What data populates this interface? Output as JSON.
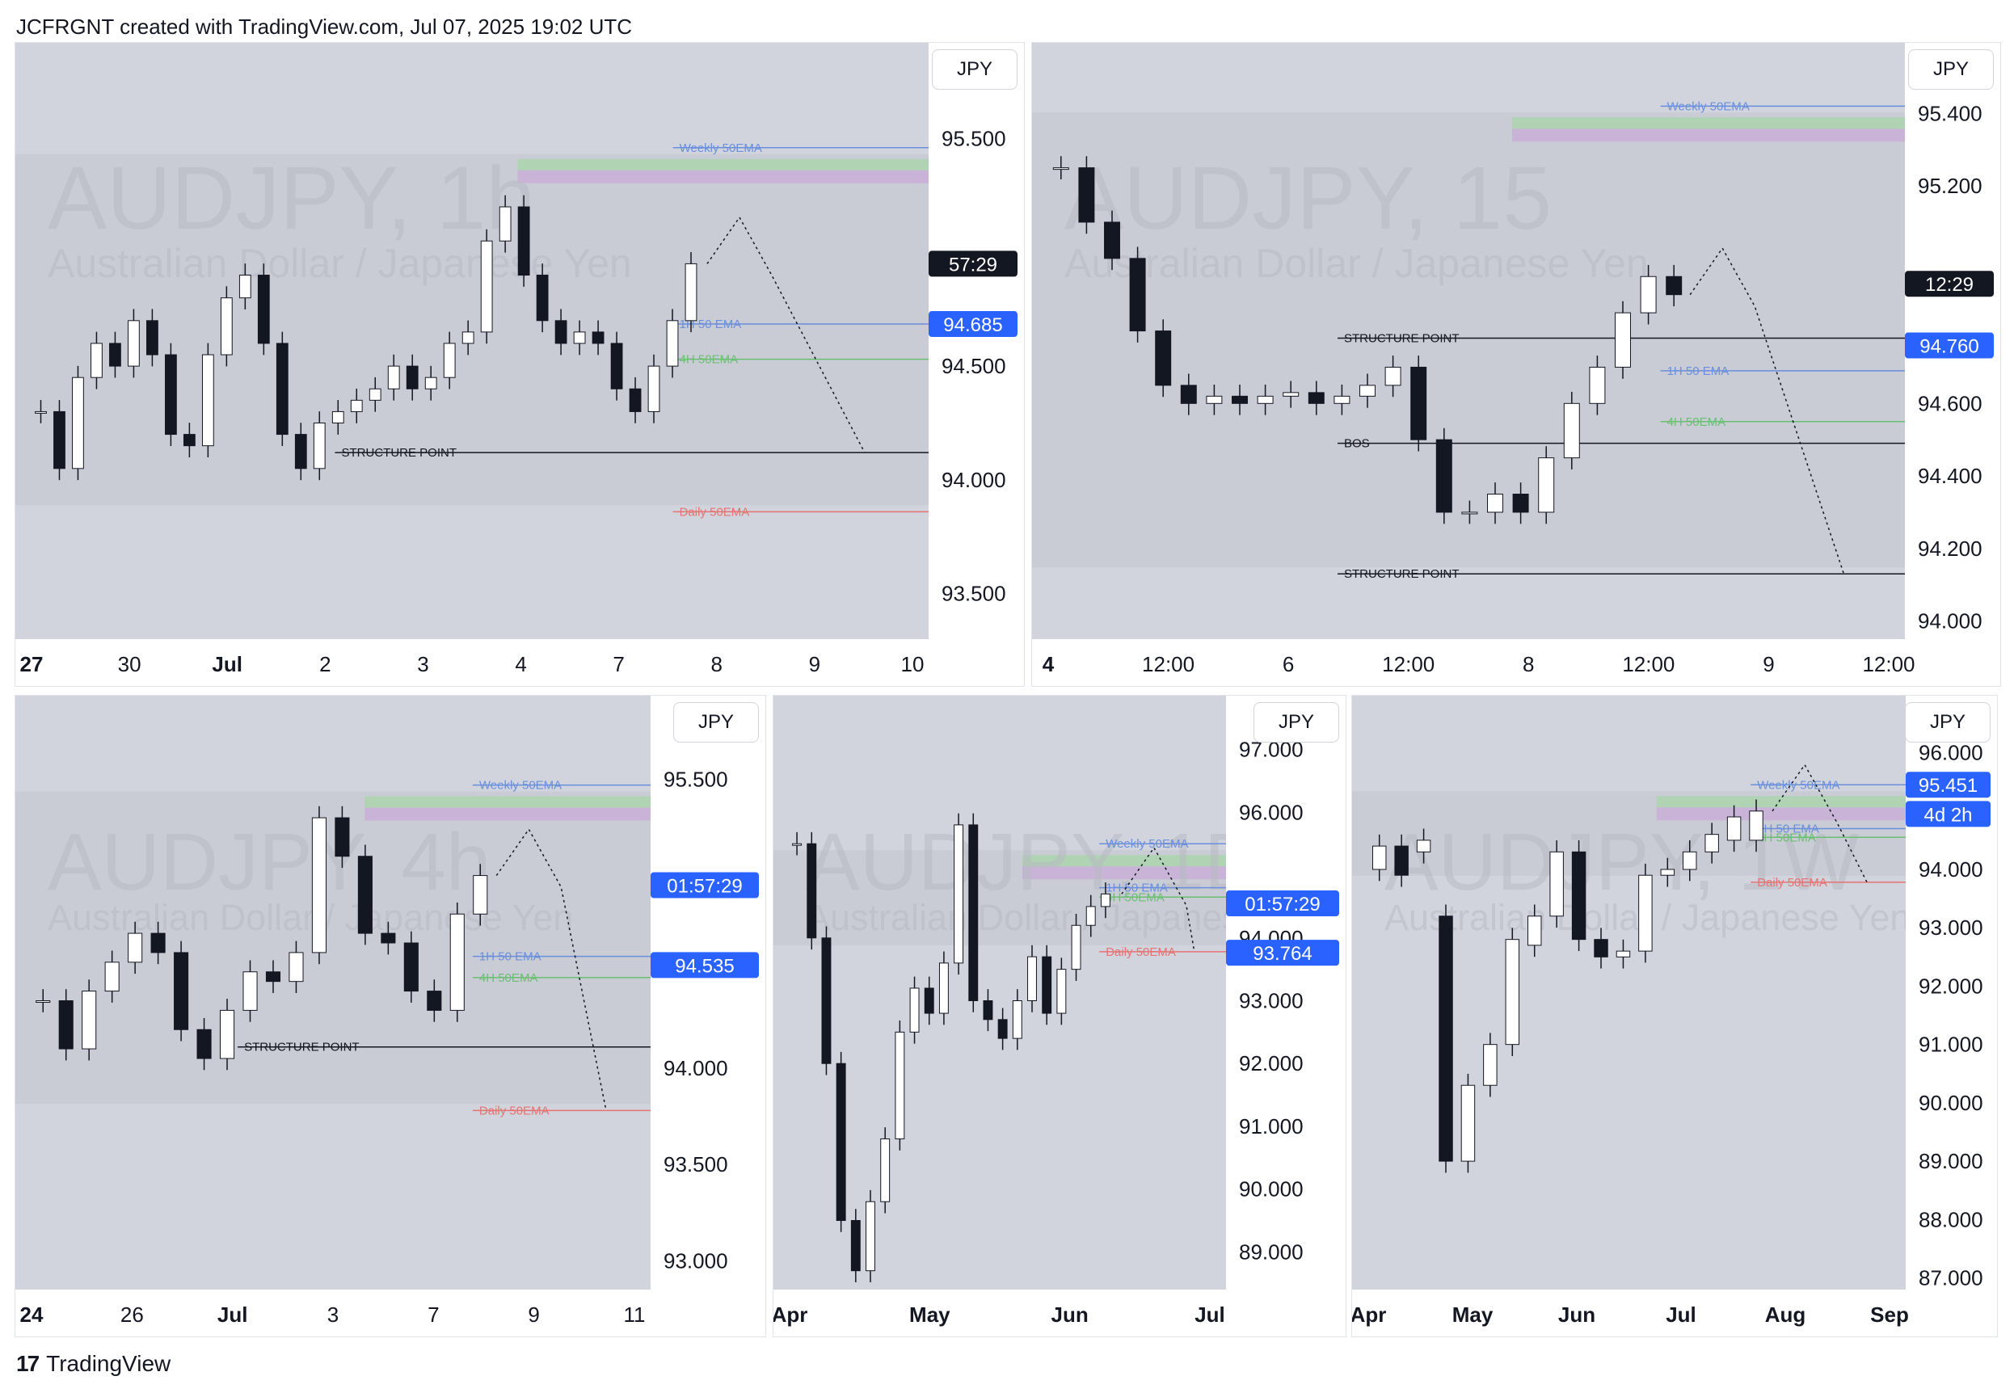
{
  "header": {
    "text": "JCFRGNT created with TradingView.com, Jul 07, 2025 19:02 UTC"
  },
  "footer": {
    "brand": "TradingView",
    "logo_glyph": "17"
  },
  "colors": {
    "panel_bg": "#d1d4dc",
    "zone_bg": "#c3c6ce",
    "weekly_ema": "#6a8fdc",
    "h1_ema": "#6a8fdc",
    "h4_ema": "#6abf73",
    "daily_ema": "#e57373",
    "supply_green": "#a5d6a7",
    "supply_purple": "#c9a4d8",
    "blue_tag": "#2962ff",
    "black_tag": "#131722"
  },
  "chart_data": [
    {
      "type": "candlestick",
      "symbol_watermark": "AUDJPY, 1h",
      "watermark_sub": "Australian Dollar / Japanese Yen",
      "currency": "JPY",
      "ylim": [
        93.3,
        95.85
      ],
      "y_ticks": [
        "95.500",
        "94.500",
        "94.000",
        "93.500"
      ],
      "x_ticks": [
        "27",
        "30",
        "Jul",
        "2",
        "3",
        "4",
        "7",
        "8",
        "9",
        "10"
      ],
      "tags": [
        {
          "text": "57:29",
          "value": 94.95,
          "color": "black"
        },
        {
          "text": "94.685",
          "value": 94.685,
          "color": "blue"
        }
      ],
      "levels": [
        {
          "name": "Weekly 50EMA",
          "value": 95.46,
          "color": "#6a8fdc"
        },
        {
          "name": "1H 50 EMA",
          "value": 94.685,
          "color": "#6a8fdc"
        },
        {
          "name": "4H 50EMA",
          "value": 94.53,
          "color": "#6abf73"
        },
        {
          "name": "Daily 50EMA",
          "value": 93.86,
          "color": "#e57373"
        },
        {
          "name": "STRUCTURE POINT",
          "value": 94.12,
          "color": "#131722"
        }
      ],
      "series": [
        {
          "name": "close",
          "values": [
            94.3,
            94.05,
            94.45,
            94.6,
            94.5,
            94.7,
            94.55,
            94.2,
            94.15,
            94.55,
            94.8,
            94.9,
            94.6,
            94.2,
            94.05,
            94.25,
            94.3,
            94.35,
            94.4,
            94.5,
            94.4,
            94.45,
            94.6,
            94.65,
            95.05,
            95.2,
            94.9,
            94.7,
            94.6,
            94.65,
            94.6,
            94.4,
            94.3,
            94.5,
            94.7,
            94.95
          ]
        }
      ]
    },
    {
      "type": "candlestick",
      "symbol_watermark": "AUDJPY, 15",
      "watermark_sub": "Australian Dollar / Japanese Yen",
      "currency": "JPY",
      "ylim": [
        93.95,
        95.55
      ],
      "y_ticks": [
        "95.400",
        "95.200",
        "94.600",
        "94.400",
        "94.200",
        "94.000"
      ],
      "x_ticks": [
        "4",
        "12:00",
        "6",
        "12:00",
        "8",
        "12:00",
        "9",
        "12:00"
      ],
      "tags": [
        {
          "text": "12:29",
          "value": 94.93,
          "color": "black"
        },
        {
          "text": "94.760",
          "value": 94.76,
          "color": "blue"
        }
      ],
      "levels": [
        {
          "name": "Weekly 50EMA",
          "value": 95.42,
          "color": "#6a8fdc"
        },
        {
          "name": "STRUCTURE POINT",
          "value": 94.78,
          "color": "#131722"
        },
        {
          "name": "1H 50 EMA",
          "value": 94.69,
          "color": "#6a8fdc"
        },
        {
          "name": "4H 50EMA",
          "value": 94.55,
          "color": "#6abf73"
        },
        {
          "name": "BOS",
          "value": 94.49,
          "color": "#131722"
        },
        {
          "name": "STRUCTURE POINT",
          "value": 94.13,
          "color": "#131722"
        }
      ],
      "series": [
        {
          "name": "close",
          "values": [
            95.25,
            95.1,
            95.0,
            94.8,
            94.65,
            94.6,
            94.62,
            94.6,
            94.62,
            94.63,
            94.6,
            94.62,
            94.65,
            94.7,
            94.5,
            94.3,
            94.3,
            94.35,
            94.3,
            94.45,
            94.6,
            94.7,
            94.85,
            94.95,
            94.9
          ]
        }
      ]
    },
    {
      "type": "candlestick",
      "symbol_watermark": "AUDJPY, 4h",
      "watermark_sub": "Australian Dollar / Japanese Yen",
      "currency": "JPY",
      "ylim": [
        92.85,
        95.85
      ],
      "y_ticks": [
        "95.500",
        "94.000",
        "93.500",
        "93.000"
      ],
      "x_ticks": [
        "24",
        "26",
        "Jul",
        "3",
        "7",
        "9",
        "11"
      ],
      "tags": [
        {
          "text": "01:57:29",
          "value": 94.95,
          "color": "blue"
        },
        {
          "text": "94.535",
          "value": 94.535,
          "color": "blue"
        }
      ],
      "levels": [
        {
          "name": "Weekly 50EMA",
          "value": 95.47,
          "color": "#6a8fdc"
        },
        {
          "name": "1H 50 EMA",
          "value": 94.58,
          "color": "#6a8fdc"
        },
        {
          "name": "4H 50EMA",
          "value": 94.47,
          "color": "#6abf73"
        },
        {
          "name": "STRUCTURE POINT",
          "value": 94.11,
          "color": "#131722"
        },
        {
          "name": "Daily 50EMA",
          "value": 93.78,
          "color": "#e57373"
        }
      ],
      "series": [
        {
          "name": "close",
          "values": [
            94.35,
            94.1,
            94.4,
            94.55,
            94.7,
            94.6,
            94.2,
            94.05,
            94.3,
            94.5,
            94.45,
            94.6,
            95.3,
            95.1,
            94.7,
            94.65,
            94.4,
            94.3,
            94.8,
            95.0
          ]
        }
      ]
    },
    {
      "type": "candlestick",
      "symbol_watermark": "AUDJPY, 1D",
      "watermark_sub": "Australian Dollar / Japanese Yen",
      "currency": "JPY",
      "ylim": [
        88.4,
        97.6
      ],
      "y_ticks": [
        "97.000",
        "96.000",
        "94.000",
        "93.000",
        "92.000",
        "91.000",
        "90.000",
        "89.000"
      ],
      "x_ticks": [
        "Apr",
        "May",
        "Jun",
        "Jul"
      ],
      "tags": [
        {
          "text": "01:57:29",
          "value": 94.55,
          "color": "blue"
        },
        {
          "text": "93.764",
          "value": 93.764,
          "color": "blue"
        }
      ],
      "levels": [
        {
          "name": "Weekly 50EMA",
          "value": 95.5,
          "color": "#6a8fdc"
        },
        {
          "name": "1H 50 EMA",
          "value": 94.8,
          "color": "#6a8fdc"
        },
        {
          "name": "4H 50EMA",
          "value": 94.65,
          "color": "#6abf73"
        },
        {
          "name": "Daily 50EMA",
          "value": 93.78,
          "color": "#e57373"
        }
      ],
      "series": [
        {
          "name": "close",
          "values": [
            95.5,
            94.0,
            92.0,
            89.5,
            88.7,
            89.8,
            90.8,
            92.5,
            93.2,
            92.8,
            93.6,
            95.8,
            93.0,
            92.7,
            92.4,
            93.0,
            93.7,
            92.8,
            93.5,
            94.2,
            94.5,
            94.7
          ]
        }
      ]
    },
    {
      "type": "candlestick",
      "symbol_watermark": "AUDJPY, 1W",
      "watermark_sub": "Australian Dollar / Japanese Yen",
      "currency": "JPY",
      "ylim": [
        86.8,
        96.7
      ],
      "y_ticks": [
        "96.000",
        "94.000",
        "93.000",
        "92.000",
        "91.000",
        "90.000",
        "89.000",
        "88.000",
        "87.000"
      ],
      "x_ticks": [
        "Apr",
        "May",
        "Jun",
        "Jul",
        "Aug",
        "Sep"
      ],
      "tags": [
        {
          "text": "95.451",
          "value": 95.451,
          "color": "blue"
        },
        {
          "text": "4d 2h",
          "value": 94.95,
          "color": "blue"
        }
      ],
      "levels": [
        {
          "name": "Weekly 50EMA",
          "value": 95.45,
          "color": "#6a8fdc"
        },
        {
          "name": "1H 50 EMA",
          "value": 94.7,
          "color": "#6a8fdc"
        },
        {
          "name": "4H 50EMA",
          "value": 94.55,
          "color": "#6abf73"
        },
        {
          "name": "Daily 50EMA",
          "value": 93.78,
          "color": "#e57373"
        }
      ],
      "series": [
        {
          "name": "open",
          "values": [
            94.0,
            94.4,
            94.3,
            93.2,
            89.0,
            90.3,
            91.0,
            92.7,
            93.2,
            94.3,
            92.8,
            92.5,
            92.6,
            93.9,
            94.0,
            94.3,
            94.5,
            94.5
          ]
        },
        {
          "name": "close",
          "values": [
            94.4,
            93.9,
            94.5,
            89.0,
            90.3,
            91.0,
            92.8,
            93.2,
            94.3,
            92.8,
            92.5,
            92.6,
            93.9,
            94.0,
            94.3,
            94.6,
            94.9,
            95.0
          ]
        }
      ]
    }
  ]
}
